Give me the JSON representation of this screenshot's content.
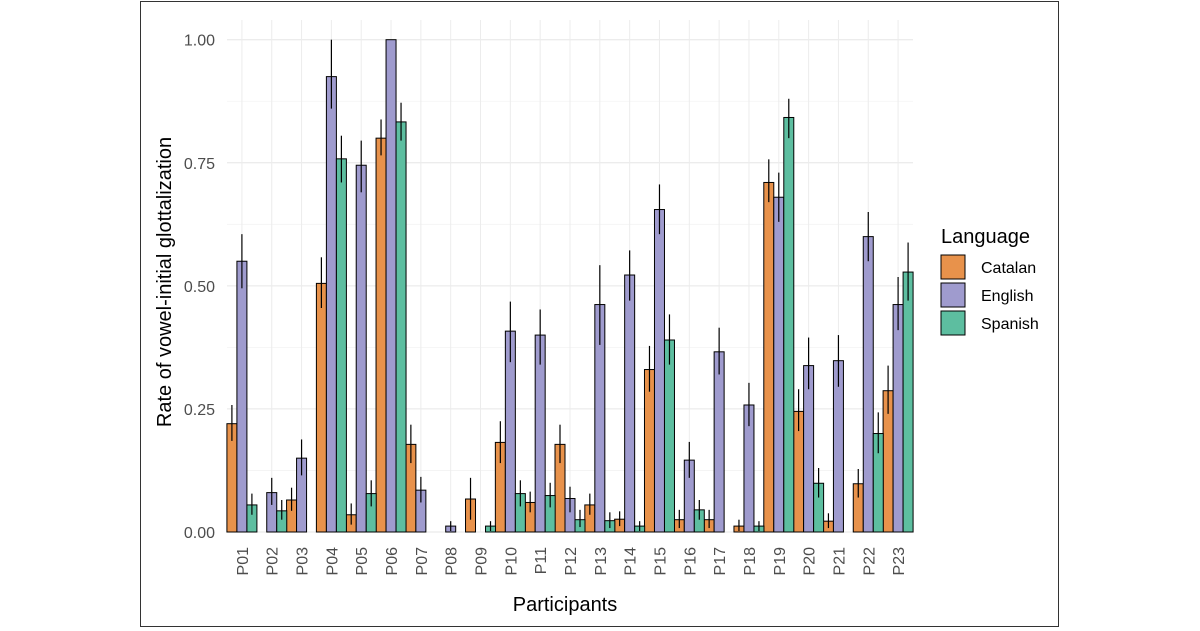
{
  "chart_data": {
    "type": "bar",
    "xlabel": "Participants",
    "ylabel": "Rate of vowel-initial glottalization",
    "ylim": [
      0,
      1.04
    ],
    "yticks": [
      "0.00",
      "0.25",
      "0.50",
      "0.75",
      "1.00"
    ],
    "ytick_values": [
      0,
      0.25,
      0.5,
      0.75,
      1.0
    ],
    "grid": true,
    "legend_title": "Language",
    "legend_position": "right",
    "categories": [
      "P01",
      "P02",
      "P03",
      "P04",
      "P05",
      "P06",
      "P07",
      "P08",
      "P09",
      "P10",
      "P11",
      "P12",
      "P13",
      "P14",
      "P15",
      "P16",
      "P17",
      "P18",
      "P19",
      "P20",
      "P21",
      "P22",
      "P23"
    ],
    "series": [
      {
        "name": "Catalan",
        "color": "#e8924b",
        "values": [
          0.22,
          null,
          0.065,
          0.505,
          0.035,
          0.8,
          0.178,
          null,
          0.067,
          0.182,
          0.06,
          0.178,
          0.055,
          0.026,
          0.33,
          0.025,
          0.025,
          0.012,
          0.71,
          0.245,
          0.022,
          0.098,
          0.287
        ],
        "err_low": [
          0.185,
          null,
          0.043,
          0.455,
          0.015,
          0.765,
          0.14,
          null,
          0.025,
          0.14,
          0.04,
          0.14,
          0.035,
          0.012,
          0.285,
          0.008,
          0.008,
          0.002,
          0.67,
          0.205,
          0.008,
          0.07,
          0.24
        ],
        "err_high": [
          0.258,
          null,
          0.09,
          0.558,
          0.058,
          0.838,
          0.218,
          null,
          0.11,
          0.225,
          0.082,
          0.218,
          0.078,
          0.042,
          0.378,
          0.045,
          0.045,
          0.025,
          0.757,
          0.29,
          0.038,
          0.128,
          0.338
        ]
      },
      {
        "name": "English",
        "color": "#9f9bce",
        "values": [
          0.55,
          0.08,
          0.15,
          0.925,
          0.745,
          1.0,
          0.085,
          0.012,
          null,
          0.408,
          0.4,
          0.068,
          0.462,
          0.522,
          0.655,
          0.146,
          0.366,
          0.258,
          0.68,
          0.338,
          0.348,
          0.6,
          0.462
        ],
        "err_low": [
          0.495,
          0.055,
          0.115,
          0.86,
          0.69,
          1.0,
          0.06,
          0.002,
          null,
          0.345,
          0.34,
          0.04,
          0.38,
          0.47,
          0.605,
          0.11,
          0.32,
          0.215,
          0.63,
          0.29,
          0.295,
          0.55,
          0.41
        ],
        "err_high": [
          0.605,
          0.11,
          0.188,
          1.0,
          0.795,
          1.0,
          0.112,
          0.022,
          null,
          0.468,
          0.452,
          0.092,
          0.542,
          0.572,
          0.706,
          0.183,
          0.415,
          0.303,
          0.73,
          0.395,
          0.4,
          0.65,
          0.518
        ]
      },
      {
        "name": "Spanish",
        "color": "#5dbea0",
        "values": [
          0.055,
          0.043,
          null,
          0.758,
          0.078,
          0.833,
          null,
          null,
          0.012,
          0.078,
          0.074,
          0.025,
          0.023,
          0.012,
          0.39,
          0.045,
          null,
          0.012,
          0.842,
          0.099,
          null,
          0.2,
          0.528
        ],
        "err_low": [
          0.035,
          0.025,
          null,
          0.71,
          0.052,
          0.795,
          null,
          null,
          0.002,
          0.052,
          0.05,
          0.01,
          0.008,
          0.002,
          0.34,
          0.025,
          null,
          0.002,
          0.8,
          0.07,
          null,
          0.16,
          0.47
        ],
        "err_high": [
          0.078,
          0.065,
          null,
          0.805,
          0.105,
          0.872,
          null,
          null,
          0.022,
          0.105,
          0.1,
          0.045,
          0.04,
          0.022,
          0.442,
          0.065,
          null,
          0.022,
          0.88,
          0.13,
          null,
          0.243,
          0.588
        ]
      }
    ]
  }
}
